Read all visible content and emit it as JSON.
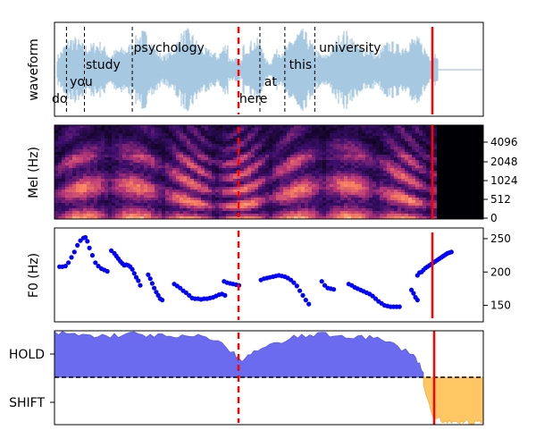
{
  "figure": {
    "panels": [
      {
        "id": "waveform",
        "ylabel": "waveform",
        "words": [
          {
            "text": "do",
            "t": 0.0
          },
          {
            "text": "you",
            "t": 0.18
          },
          {
            "text": "study",
            "t": 0.34
          },
          {
            "text": "psychology",
            "t": 0.82
          },
          {
            "text": "here",
            "t": 1.88
          },
          {
            "text": "at",
            "t": 2.13
          },
          {
            "text": "this",
            "t": 2.38
          },
          {
            "text": "university",
            "t": 2.68
          }
        ],
        "word_boundaries": [
          0.12,
          0.3,
          0.78,
          2.06,
          2.31,
          2.61
        ],
        "speech_end": 3.85,
        "trace_color": "#a6c8e0"
      },
      {
        "id": "mel",
        "ylabel": "Mel (Hz)",
        "yticks": [
          "0",
          "512",
          "1024",
          "2048",
          "4096"
        ]
      },
      {
        "id": "f0",
        "ylabel": "F0 (Hz)",
        "yticks": [
          "150",
          "200",
          "250"
        ],
        "ylim": [
          128,
          262
        ],
        "point_color": "#0000ff"
      },
      {
        "id": "vad",
        "yticks": [
          "HOLD",
          "SHIFT"
        ],
        "hold_color": "#6b6bf0",
        "shift_color": "#ffc764",
        "threshold_style": "dashed"
      }
    ],
    "markers": {
      "current_time_color": "#ff0000",
      "dashed_time": 1.85,
      "solid_time": 3.78
    }
  },
  "chart_data": [
    {
      "type": "area",
      "title": "",
      "xlabel": "",
      "ylabel": "waveform",
      "x_range": [
        0,
        4.3
      ],
      "annotations": [
        "do",
        "you",
        "study",
        "psychology",
        "here",
        "at",
        "this",
        "university"
      ],
      "grid": false
    },
    {
      "type": "heatmap",
      "ylabel": "Mel (Hz)",
      "yticks": [
        0,
        512,
        1024,
        2048,
        4096
      ],
      "x_range": [
        0,
        4.3
      ],
      "grid": false
    },
    {
      "type": "scatter",
      "ylabel": "F0 (Hz)",
      "ylim": [
        128,
        262
      ],
      "x_range": [
        0,
        4.3
      ],
      "series": [
        {
          "x": [
            0.05,
            0.08,
            0.11,
            0.14,
            0.17,
            0.2,
            0.23,
            0.26,
            0.29,
            0.31,
            0.33,
            0.35,
            0.38,
            0.41,
            0.44,
            0.47,
            0.5,
            0.53,
            0.57,
            0.6,
            0.62,
            0.64,
            0.66,
            0.68,
            0.7,
            0.72,
            0.74,
            0.76,
            0.78,
            0.8,
            0.82,
            0.84,
            0.86,
            0.94,
            0.96,
            0.98,
            1.0,
            1.02,
            1.04,
            1.06,
            1.08,
            1.2,
            1.23,
            1.26,
            1.29,
            1.32,
            1.35,
            1.38,
            1.41,
            1.44,
            1.47,
            1.5,
            1.53,
            1.56,
            1.59,
            1.62,
            1.65,
            1.68,
            1.71,
            1.7,
            1.73,
            1.76,
            1.79,
            1.82,
            1.85,
            2.07,
            2.1,
            2.13,
            2.16,
            2.19,
            2.22,
            2.25,
            2.28,
            2.31,
            2.34,
            2.37,
            2.4,
            2.43,
            2.46,
            2.49,
            2.52,
            2.55,
            2.68,
            2.71,
            2.74,
            2.77,
            2.8,
            2.95,
            2.98,
            3.01,
            3.04,
            3.07,
            3.1,
            3.13,
            3.16,
            3.19,
            3.22,
            3.25,
            3.28,
            3.31,
            3.34,
            3.37,
            3.4,
            3.43,
            3.46,
            3.58,
            3.6,
            3.62,
            3.64,
            3.64,
            3.66,
            3.68,
            3.7,
            3.72,
            3.74,
            3.76,
            3.78,
            3.8,
            3.82,
            3.84,
            3.86,
            3.88,
            3.9,
            3.92,
            3.94,
            3.96,
            3.98
          ],
          "y": [
            208,
            208,
            209,
            214,
            222,
            230,
            240,
            247,
            251,
            252,
            246,
            236,
            225,
            214,
            209,
            205,
            203,
            201,
            232,
            228,
            224,
            220,
            216,
            213,
            210,
            211,
            210,
            208,
            204,
            198,
            192,
            187,
            180,
            196,
            190,
            183,
            176,
            170,
            165,
            160,
            158,
            182,
            179,
            176,
            172,
            169,
            165,
            161,
            160,
            160,
            159,
            160,
            160,
            161,
            162,
            164,
            166,
            167,
            165,
            186,
            184,
            183,
            182,
            181,
            180,
            188,
            190,
            191,
            192,
            193,
            194,
            195,
            194,
            193,
            191,
            188,
            184,
            179,
            172,
            165,
            158,
            152,
            186,
            180,
            176,
            175,
            174,
            182,
            180,
            177,
            175,
            173,
            171,
            169,
            167,
            164,
            160,
            156,
            153,
            150,
            149,
            148,
            148,
            148,
            148,
            173,
            168,
            162,
            158,
            195,
            199,
            200,
            203,
            206,
            208,
            210,
            212,
            214,
            216,
            218,
            220,
            222,
            224,
            226,
            228,
            229,
            230
          ]
        }
      ],
      "grid": false
    },
    {
      "type": "area",
      "ylabel": "",
      "yticks": [
        "HOLD",
        "SHIFT"
      ],
      "x_range": [
        0,
        4.3
      ],
      "series": [
        {
          "name": "",
          "x": [
            0,
            0.2,
            0.4,
            0.6,
            0.8,
            1.0,
            1.2,
            1.4,
            1.6,
            1.8,
            1.85,
            2.0,
            2.2,
            2.4,
            2.6,
            2.8,
            3.0,
            3.2,
            3.4,
            3.6,
            3.7
          ],
          "values": [
            0.95,
            0.92,
            0.88,
            0.9,
            0.93,
            0.9,
            0.85,
            0.88,
            0.84,
            0.5,
            0.35,
            0.55,
            0.7,
            0.85,
            0.92,
            0.9,
            0.88,
            0.85,
            0.7,
            0.5,
            0.1
          ]
        },
        {
          "name": "",
          "x": [
            3.7,
            3.8,
            3.9,
            4.0,
            4.1,
            4.2,
            4.3
          ],
          "values": [
            -0.2,
            -0.85,
            -0.92,
            -0.95,
            -0.96,
            -0.97,
            -0.98
          ]
        }
      ],
      "grid": false
    }
  ]
}
